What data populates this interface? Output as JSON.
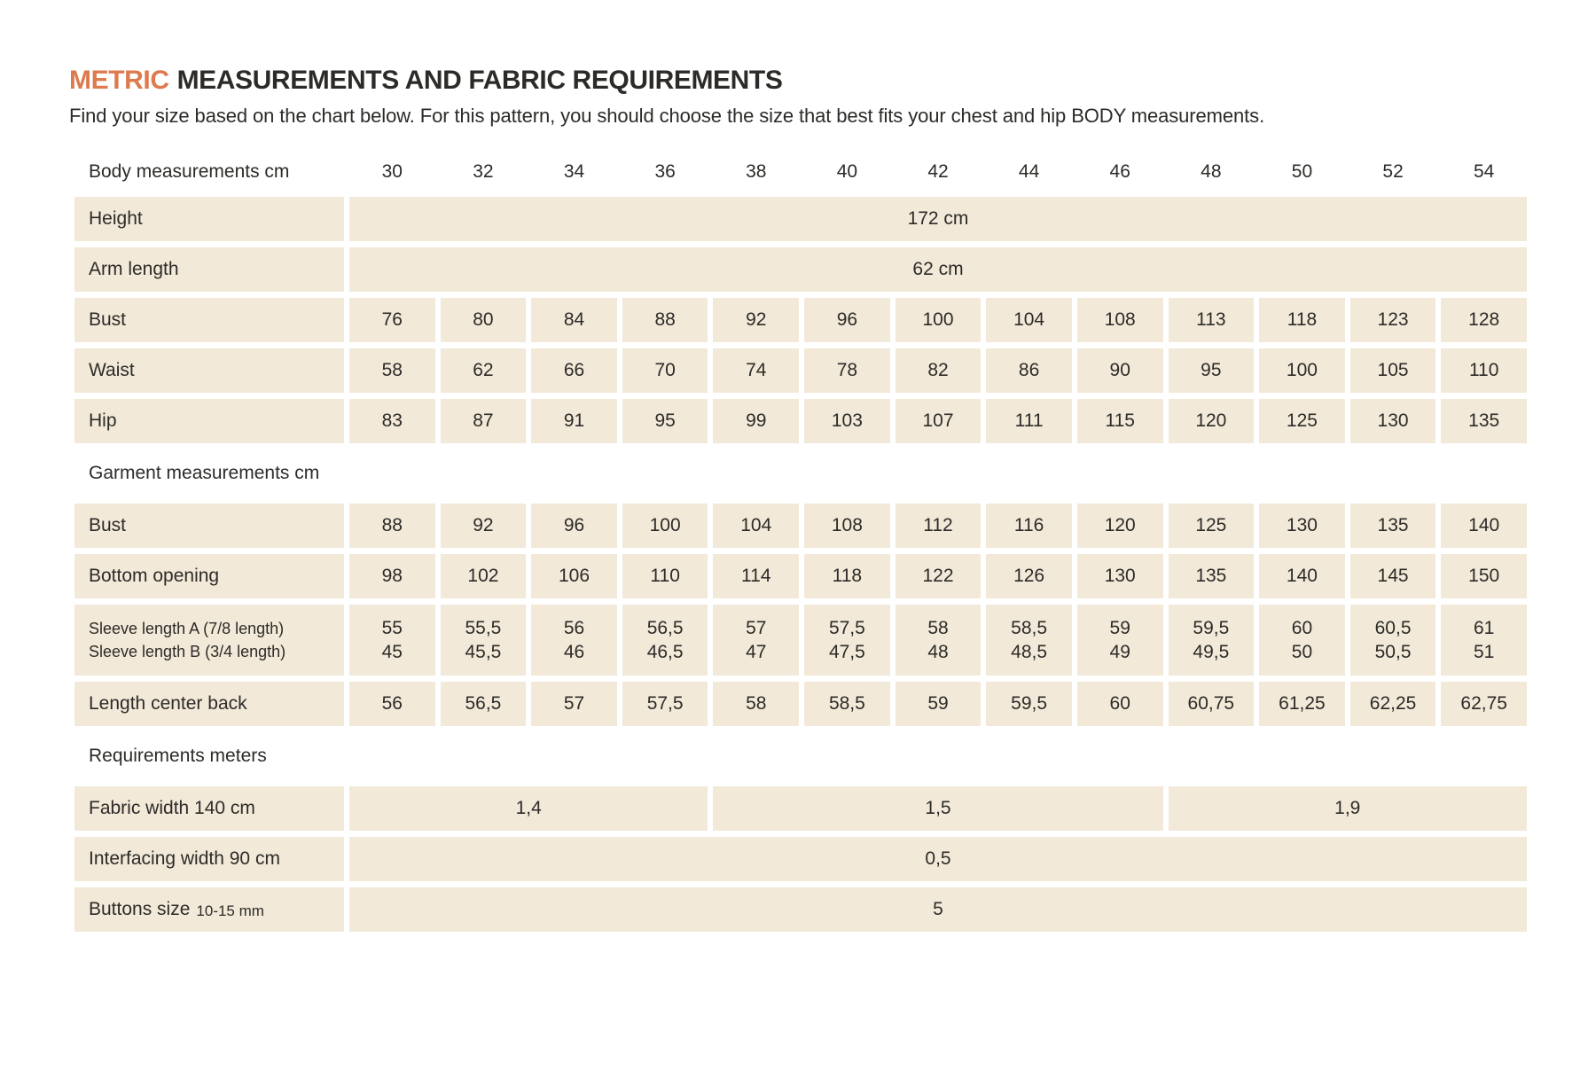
{
  "title": {
    "metric": "METRIC",
    "rest": "MEASUREMENTS AND FABRIC REQUIREMENTS"
  },
  "subtitle": "Find your size based on the chart below. For this pattern, you should choose the size that best fits your chest and hip BODY measurements.",
  "colors": {
    "accent": "#DD7A4E",
    "cell_bg": "#F2E9D8",
    "text": "#2D2B28"
  },
  "table": {
    "header_label": "Body measurements cm",
    "sizes": [
      "30",
      "32",
      "34",
      "36",
      "38",
      "40",
      "42",
      "44",
      "46",
      "48",
      "50",
      "52",
      "54"
    ],
    "rows": [
      {
        "type": "span",
        "label": "Height",
        "spans": [
          {
            "cols": 13,
            "value": "172 cm"
          }
        ]
      },
      {
        "type": "span",
        "label": "Arm length",
        "spans": [
          {
            "cols": 13,
            "value": "62 cm"
          }
        ]
      },
      {
        "type": "data",
        "label": "Bust",
        "values": [
          "76",
          "80",
          "84",
          "88",
          "92",
          "96",
          "100",
          "104",
          "108",
          "113",
          "118",
          "123",
          "128"
        ]
      },
      {
        "type": "data",
        "label": "Waist",
        "values": [
          "58",
          "62",
          "66",
          "70",
          "74",
          "78",
          "82",
          "86",
          "90",
          "95",
          "100",
          "105",
          "110"
        ]
      },
      {
        "type": "data",
        "label": "Hip",
        "values": [
          "83",
          "87",
          "91",
          "95",
          "99",
          "103",
          "107",
          "111",
          "115",
          "120",
          "125",
          "130",
          "135"
        ]
      },
      {
        "type": "section",
        "label": "Garment measurements cm"
      },
      {
        "type": "data",
        "label": "Bust",
        "values": [
          "88",
          "92",
          "96",
          "100",
          "104",
          "108",
          "112",
          "116",
          "120",
          "125",
          "130",
          "135",
          "140"
        ]
      },
      {
        "type": "data",
        "label": "Bottom opening",
        "values": [
          "98",
          "102",
          "106",
          "110",
          "114",
          "118",
          "122",
          "126",
          "130",
          "135",
          "140",
          "145",
          "150"
        ]
      },
      {
        "type": "multi",
        "labels": [
          "Sleeve length  A (7/8 length)",
          "Sleeve length B (3/4 length)"
        ],
        "values_a": [
          "55",
          "55,5",
          "56",
          "56,5",
          "57",
          "57,5",
          "58",
          "58,5",
          "59",
          "59,5",
          "60",
          "60,5",
          "61"
        ],
        "values_b": [
          "45",
          "45,5",
          "46",
          "46,5",
          "47",
          "47,5",
          "48",
          "48,5",
          "49",
          "49,5",
          "50",
          "50,5",
          "51"
        ]
      },
      {
        "type": "data",
        "label": "Length center back",
        "values": [
          "56",
          "56,5",
          "57",
          "57,5",
          "58",
          "58,5",
          "59",
          "59,5",
          "60",
          "60,75",
          "61,25",
          "62,25",
          "62,75"
        ]
      },
      {
        "type": "section",
        "label": "Requirements meters"
      },
      {
        "type": "span",
        "label": "Fabric width 140 cm",
        "spans": [
          {
            "cols": 4,
            "value": "1,4"
          },
          {
            "cols": 5,
            "value": "1,5"
          },
          {
            "cols": 4,
            "value": "1,9"
          }
        ]
      },
      {
        "type": "span",
        "label": "Interfacing width 90 cm",
        "spans": [
          {
            "cols": 13,
            "value": "0,5"
          }
        ]
      },
      {
        "type": "span",
        "label": "Buttons size",
        "label_small": "10-15 mm",
        "spans": [
          {
            "cols": 13,
            "value": "5"
          }
        ]
      }
    ]
  }
}
